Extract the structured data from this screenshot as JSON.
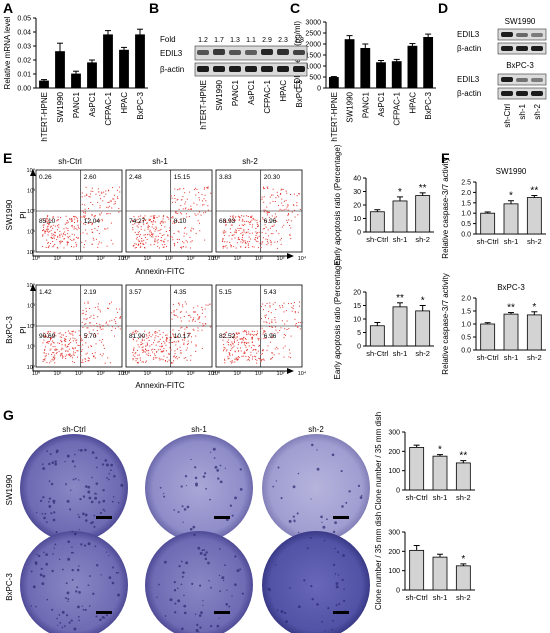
{
  "panels": {
    "A": "A",
    "B": "B",
    "C": "C",
    "D": "D",
    "E": "E",
    "F": "F",
    "G": "G"
  },
  "chart_data": [
    {
      "id": "A",
      "type": "bar",
      "ylabel": "Relative mRNA level",
      "categories": [
        "hTERT-HPNE",
        "SW1990",
        "PANC1",
        "AsPC1",
        "CFPAC-1",
        "HPAC",
        "BxPC-3"
      ],
      "values": [
        0.005,
        0.026,
        0.01,
        0.018,
        0.038,
        0.027,
        0.038
      ],
      "errors": [
        0.001,
        0.006,
        0.002,
        0.002,
        0.003,
        0.002,
        0.004
      ],
      "ylim": [
        0,
        0.05
      ],
      "yticks": [
        "0.00",
        "0.01",
        "0.02",
        "0.03",
        "0.04",
        "0.05"
      ]
    },
    {
      "id": "C",
      "type": "bar",
      "ylabel": "EDIL3 level (pg/ml)",
      "categories": [
        "hTERT-HPNE",
        "SW1990",
        "PANC1",
        "AsPC1",
        "CFPAC-1",
        "HPAC",
        "BxPC-3"
      ],
      "values": [
        480,
        2200,
        1800,
        1150,
        1200,
        1900,
        2300
      ],
      "errors": [
        40,
        180,
        200,
        100,
        100,
        120,
        150
      ],
      "ylim": [
        0,
        3000
      ],
      "yticks": [
        "0",
        "500",
        "1000",
        "1500",
        "2000",
        "2500",
        "3000"
      ]
    },
    {
      "id": "E-SW1990",
      "type": "bar",
      "ylabel": "Early apoptosis ratio (Percentage)",
      "categories": [
        "sh-Ctrl",
        "sh-1",
        "sh-2"
      ],
      "values": [
        15,
        23,
        27
      ],
      "errors": [
        1.5,
        3,
        2
      ],
      "sig": [
        "",
        "*",
        "**"
      ],
      "ylim": [
        0,
        40
      ],
      "yticks": [
        "0",
        "10",
        "20",
        "30",
        "40"
      ]
    },
    {
      "id": "E-BxPC-3",
      "type": "bar",
      "ylabel": "Early apoptosis ratio (Percentage)",
      "categories": [
        "sh-Ctrl",
        "sh-1",
        "sh-2"
      ],
      "values": [
        7.5,
        14.5,
        13
      ],
      "errors": [
        1.2,
        1.5,
        2
      ],
      "sig": [
        "",
        "**",
        "*"
      ],
      "ylim": [
        0,
        20
      ],
      "yticks": [
        "0",
        "5",
        "10",
        "15",
        "20"
      ]
    },
    {
      "id": "F-SW1990",
      "type": "bar",
      "title": "SW1990",
      "ylabel": "Relative caspase-3/7 activity",
      "categories": [
        "sh-Ctrl",
        "sh-1",
        "sh-2"
      ],
      "values": [
        1.0,
        1.45,
        1.75
      ],
      "errors": [
        0.06,
        0.15,
        0.1
      ],
      "sig": [
        "",
        "*",
        "**"
      ],
      "ylim": [
        0,
        2.5
      ],
      "yticks": [
        "0.0",
        "0.5",
        "1.0",
        "1.5",
        "2.0",
        "2.5"
      ]
    },
    {
      "id": "F-BxPC-3",
      "type": "bar",
      "title": "BxPC-3",
      "ylabel": "Relative caspase-3/7 activity",
      "categories": [
        "sh-Ctrl",
        "sh-1",
        "sh-2"
      ],
      "values": [
        1.0,
        1.38,
        1.35
      ],
      "errors": [
        0.05,
        0.06,
        0.12
      ],
      "sig": [
        "",
        "**",
        "*"
      ],
      "ylim": [
        0,
        2.0
      ],
      "yticks": [
        "0.0",
        "0.5",
        "1.0",
        "1.5",
        "2.0"
      ]
    },
    {
      "id": "G-SW1990",
      "type": "bar",
      "ylabel": "Clone number / 35 mm dish",
      "categories": [
        "sh-Ctrl",
        "sh-1",
        "sh-2"
      ],
      "values": [
        220,
        175,
        140
      ],
      "errors": [
        12,
        8,
        12
      ],
      "sig": [
        "",
        "*",
        "**"
      ],
      "ylim": [
        0,
        300
      ],
      "yticks": [
        "0",
        "100",
        "200",
        "300"
      ]
    },
    {
      "id": "G-BxPC-3",
      "type": "bar",
      "ylabel": "Clone number / 35 mm dish",
      "categories": [
        "sh-Ctrl",
        "sh-1",
        "sh-2"
      ],
      "values": [
        205,
        170,
        125
      ],
      "errors": [
        25,
        15,
        10
      ],
      "sig": [
        "",
        "",
        "*"
      ],
      "ylim": [
        0,
        300
      ],
      "yticks": [
        "0",
        "100",
        "200",
        "300"
      ]
    }
  ],
  "blotB": {
    "fold_label": "Fold",
    "folds": [
      "1.2",
      "1.7",
      "1.3",
      "1.1",
      "2.9",
      "2.3",
      "1.8"
    ],
    "bands": [
      "EDIL3",
      "β-actin"
    ],
    "lanes": [
      "hTERT-HPNE",
      "SW1990",
      "PANC1",
      "AsPC1",
      "CFPAC-1",
      "HPAC",
      "BxPC-3"
    ]
  },
  "blotD": {
    "top_title": "SW1990",
    "bottom_title": "BxPC-3",
    "bands": [
      "EDIL3",
      "β-actin"
    ],
    "lanes": [
      "sh-Ctrl",
      "sh-1",
      "sh-2"
    ]
  },
  "flow": {
    "rows": [
      "SW1990",
      "BxPC-3"
    ],
    "cols": [
      "sh-Ctrl",
      "sh-1",
      "sh-2"
    ],
    "ylabel": "PI",
    "xlabel": "Annexin-FITC",
    "ticks": [
      "10⁰",
      "10¹",
      "10²",
      "10³",
      "10⁴"
    ],
    "quads": [
      [
        [
          "0.26",
          "2.60",
          "85.10",
          "12.04"
        ],
        [
          "2.48",
          "15.15",
          "74.27",
          "8.10"
        ],
        [
          "3.83",
          "20.30",
          "68.93",
          "6.96"
        ]
      ],
      [
        [
          "1.42",
          "2.19",
          "90.69",
          "5.70"
        ],
        [
          "3.57",
          "4.35",
          "81.90",
          "10.17"
        ],
        [
          "5.15",
          "5.43",
          "82.52",
          "6.96"
        ]
      ]
    ]
  },
  "colony": {
    "cols": [
      "sh-Ctrl",
      "sh-1",
      "sh-2"
    ],
    "rows": [
      "SW1990",
      "BxPC-3"
    ]
  }
}
